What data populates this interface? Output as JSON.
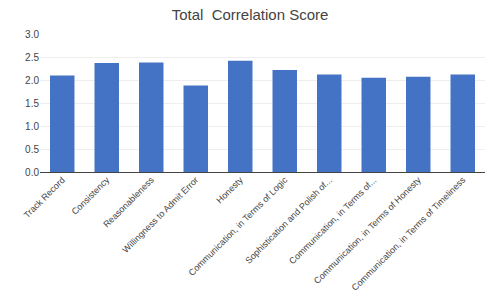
{
  "chart_data": {
    "type": "bar",
    "title": "Total  Correlation Score",
    "categories": [
      "Track Record",
      "Consistency",
      "Reasonableness",
      "Willingness to Admit Error",
      "Honesty",
      "Communication, in Terms of Logic",
      "Sophistication and Polish of...",
      "Communication, in Terms of...",
      "Communication, in Terms of Honesty",
      "Communication, in Terms of Timeliness"
    ],
    "values": [
      2.1,
      2.37,
      2.38,
      1.88,
      2.42,
      2.22,
      2.12,
      2.05,
      2.07,
      2.12
    ],
    "color": "#4472C4",
    "ylim": [
      0,
      3
    ],
    "yticks": [
      {
        "value": 0,
        "label": "0.0"
      },
      0.5,
      {
        "value": 1,
        "label": "1.0"
      },
      1.5,
      {
        "value": 2,
        "label": "2.0"
      },
      2.5,
      {
        "value": 3,
        "label": "3.0"
      }
    ],
    "grid": true
  }
}
